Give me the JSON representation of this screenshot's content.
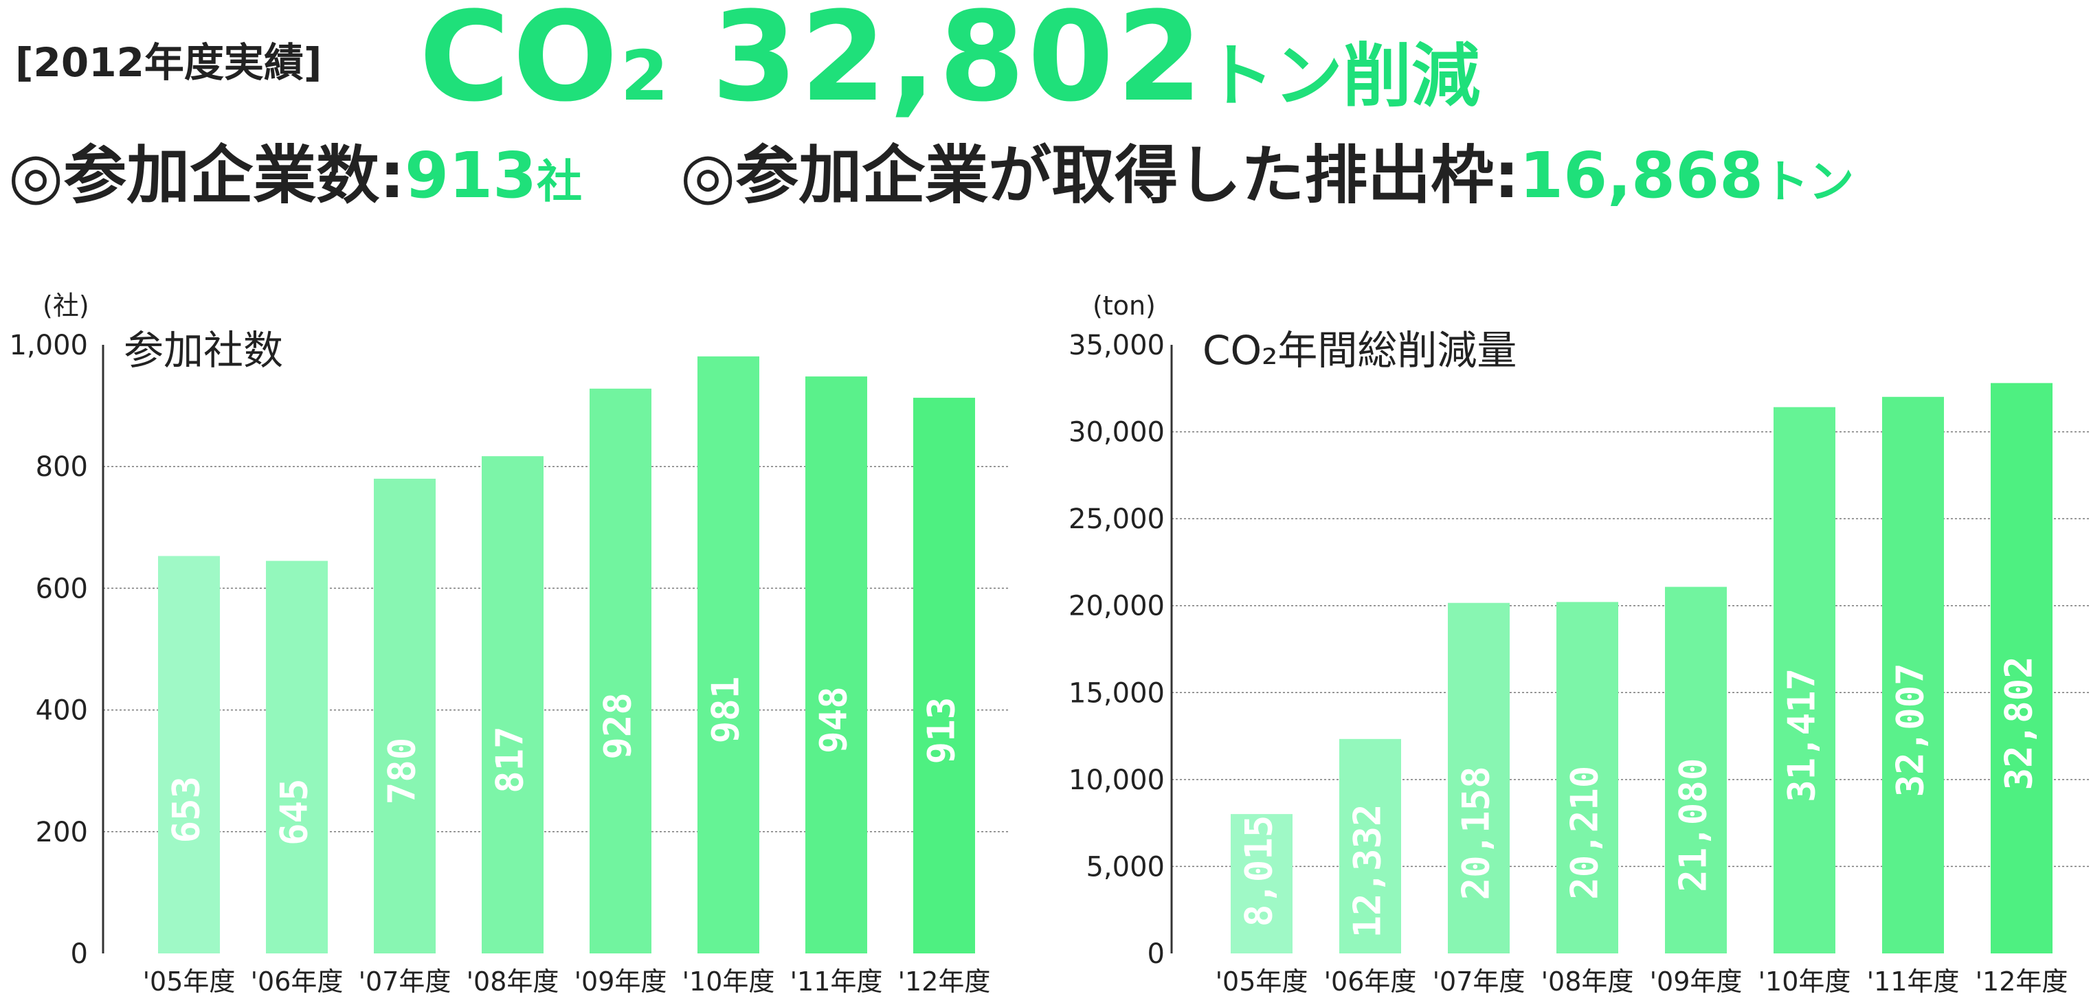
{
  "header": {
    "year_tag": "[2012年度実績]",
    "headline_co2": "CO",
    "headline_sub": "2",
    "headline_value": "32,802",
    "headline_unit": "トン削減"
  },
  "stats": [
    {
      "prefix": "◎参加企業数:",
      "value": "913",
      "unit": "社"
    },
    {
      "prefix": "◎参加企業が取得した排出枠:",
      "value": "16,868",
      "unit": "トン"
    }
  ],
  "colors": {
    "accent": "#1fe07a",
    "bar_light": "#9ff9c6",
    "bar_dark": "#4ef081",
    "text": "#222222",
    "grid": "#7a7a7a"
  },
  "chart_data": [
    {
      "type": "bar",
      "title": "参加社数",
      "unit_label": "(社)",
      "categories": [
        "'05年度",
        "'06年度",
        "'07年度",
        "'08年度",
        "'09年度",
        "'10年度",
        "'11年度",
        "'12年度"
      ],
      "values": [
        653,
        645,
        780,
        817,
        928,
        981,
        948,
        913
      ],
      "value_labels": [
        "653",
        "645",
        "780",
        "817",
        "928",
        "981",
        "948",
        "913"
      ],
      "ylim": [
        0,
        1000
      ],
      "yticks": [
        0,
        200,
        400,
        600,
        800,
        1000
      ],
      "ytick_labels": [
        "0",
        "200",
        "400",
        "600",
        "800",
        "1,000"
      ],
      "grid": true
    },
    {
      "type": "bar",
      "title": "CO₂年間総削減量",
      "unit_label": "(ton)",
      "categories": [
        "'05年度",
        "'06年度",
        "'07年度",
        "'08年度",
        "'09年度",
        "'10年度",
        "'11年度",
        "'12年度"
      ],
      "values": [
        8015,
        12332,
        20158,
        20210,
        21080,
        31417,
        32007,
        32802
      ],
      "value_labels": [
        "8,015",
        "12,332",
        "20,158",
        "20,210",
        "21,080",
        "31,417",
        "32,007",
        "32,802"
      ],
      "ylim": [
        0,
        35000
      ],
      "yticks": [
        0,
        5000,
        10000,
        15000,
        20000,
        25000,
        30000,
        35000
      ],
      "ytick_labels": [
        "0",
        "5,000",
        "10,000",
        "15,000",
        "20,000",
        "25,000",
        "30,000",
        "35,000"
      ],
      "grid": true
    }
  ]
}
